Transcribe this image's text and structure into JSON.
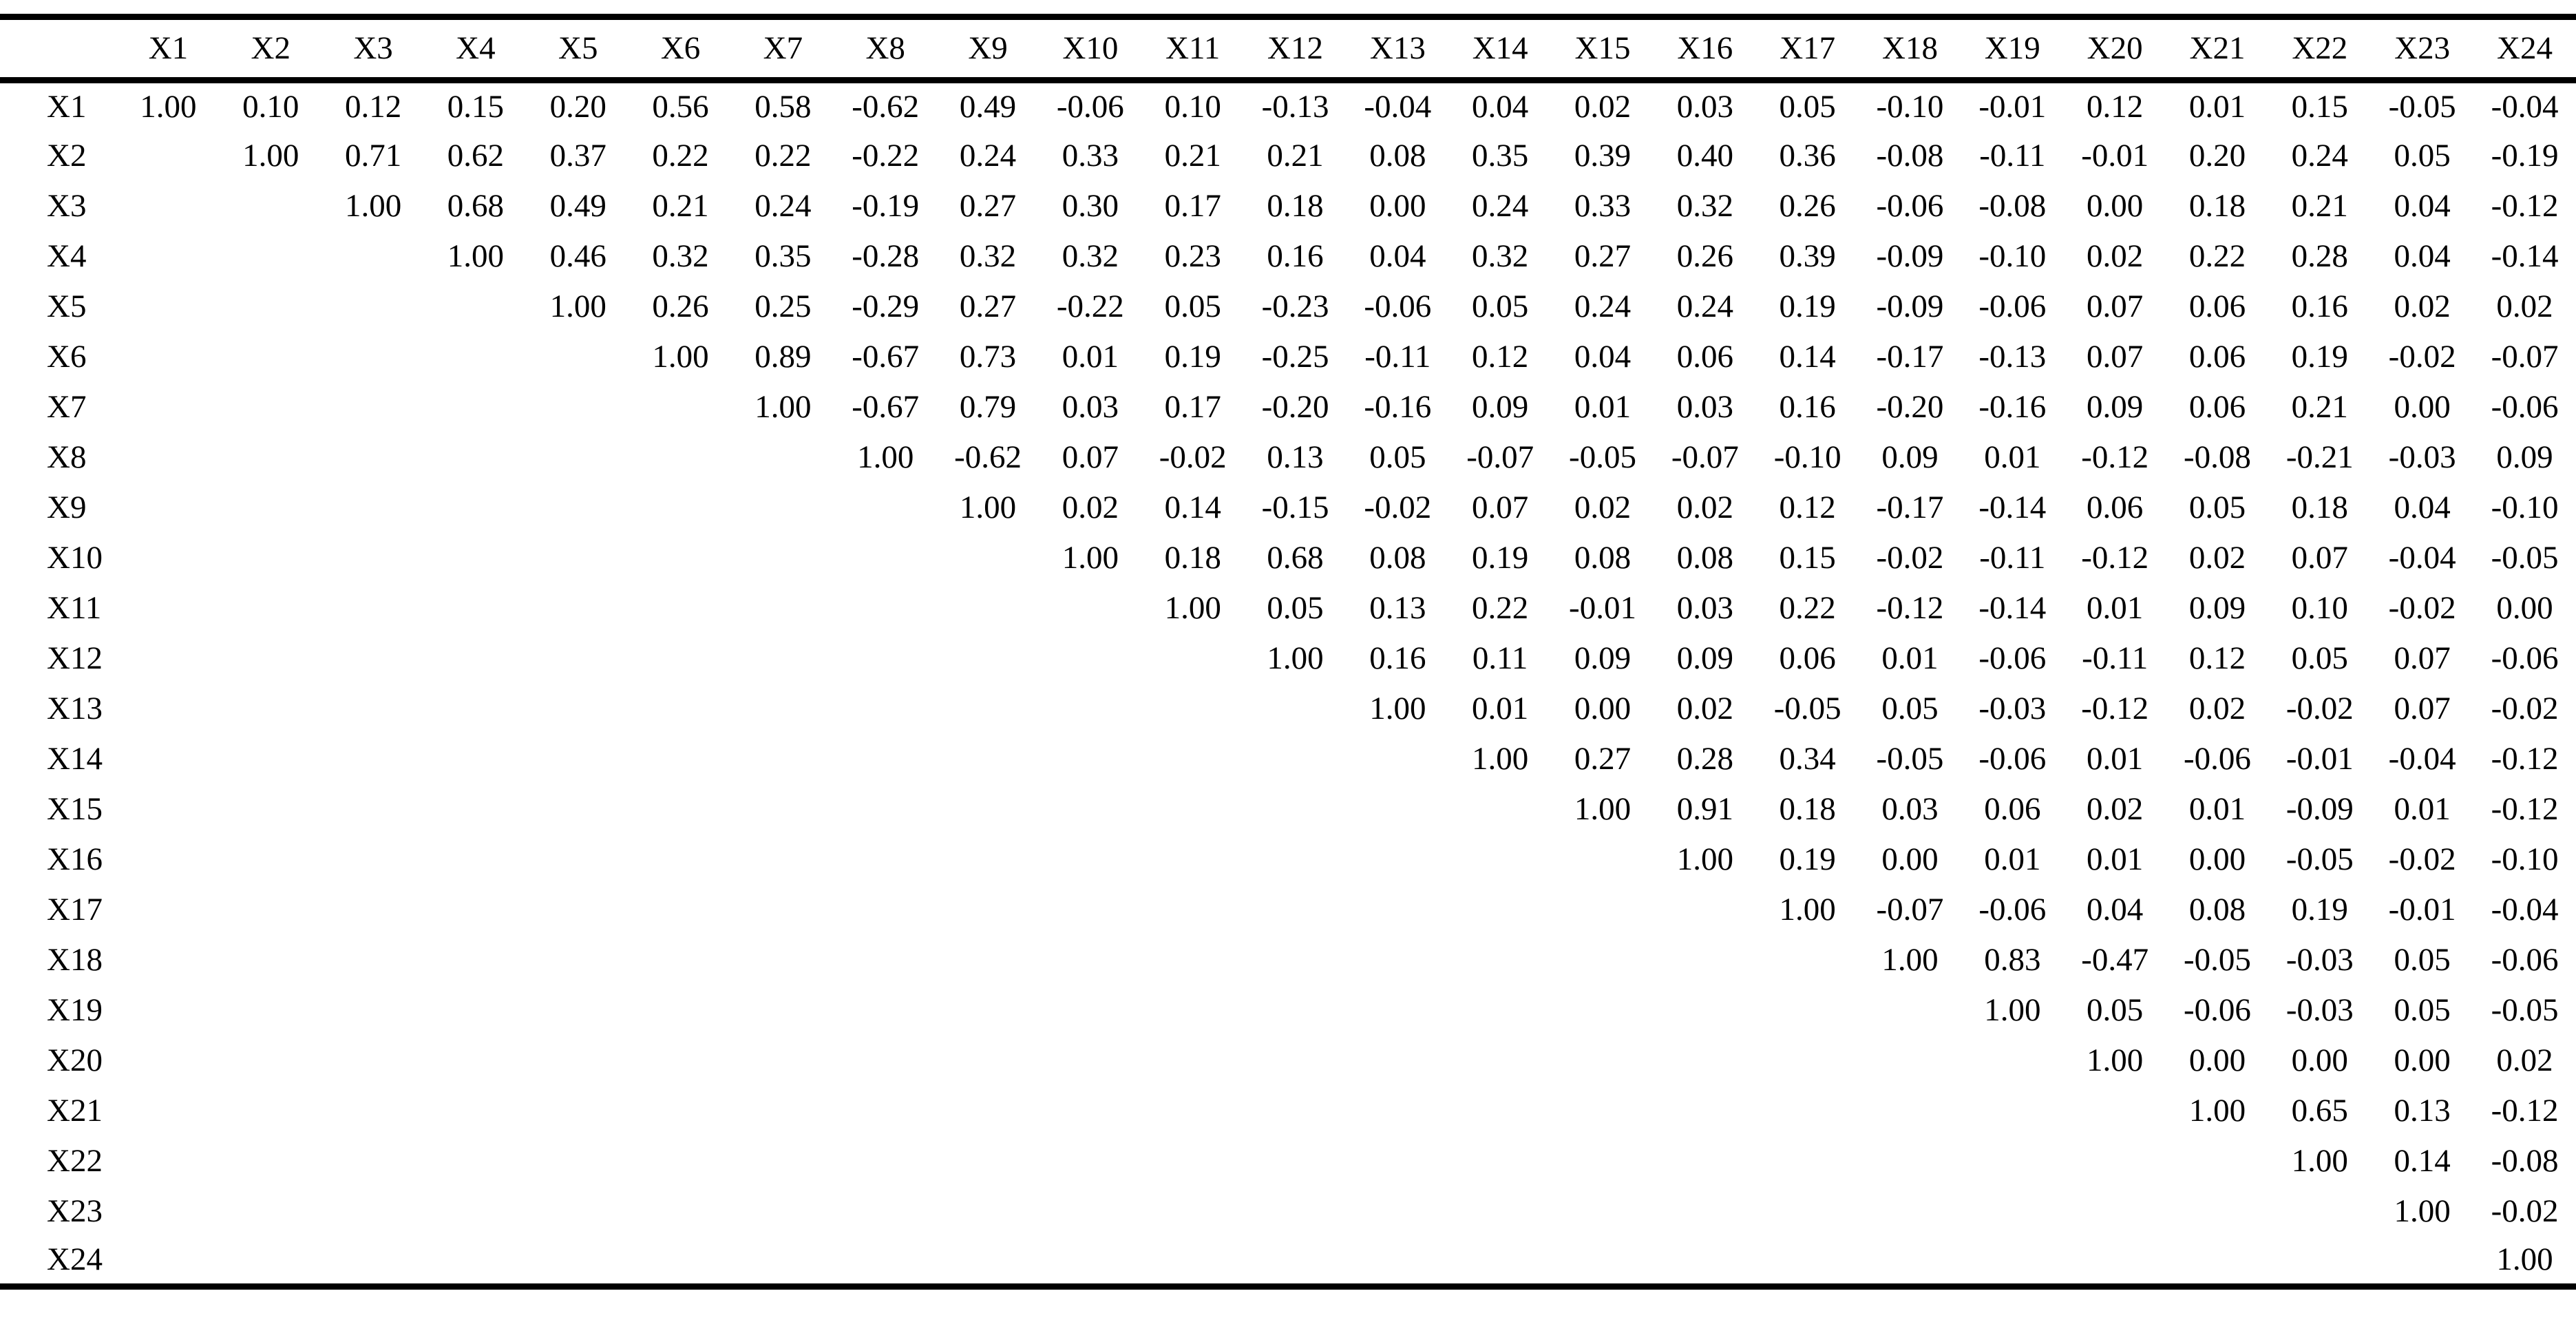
{
  "table": {
    "corner_label": "",
    "columns": [
      "X1",
      "X2",
      "X3",
      "X4",
      "X5",
      "X6",
      "X7",
      "X8",
      "X9",
      "X10",
      "X11",
      "X12",
      "X13",
      "X14",
      "X15",
      "X16",
      "X17",
      "X18",
      "X19",
      "X20",
      "X21",
      "X22",
      "X23",
      "X24"
    ],
    "rows": [
      {
        "label": "X1",
        "values": [
          "1.00",
          "0.10",
          "0.12",
          "0.15",
          "0.20",
          "0.56",
          "0.58",
          "-0.62",
          "0.49",
          "-0.06",
          "0.10",
          "-0.13",
          "-0.04",
          "0.04",
          "0.02",
          "0.03",
          "0.05",
          "-0.10",
          "-0.01",
          "0.12",
          "0.01",
          "0.15",
          "-0.05",
          "-0.04"
        ]
      },
      {
        "label": "X2",
        "values": [
          "",
          "1.00",
          "0.71",
          "0.62",
          "0.37",
          "0.22",
          "0.22",
          "-0.22",
          "0.24",
          "0.33",
          "0.21",
          "0.21",
          "0.08",
          "0.35",
          "0.39",
          "0.40",
          "0.36",
          "-0.08",
          "-0.11",
          "-0.01",
          "0.20",
          "0.24",
          "0.05",
          "-0.19"
        ]
      },
      {
        "label": "X3",
        "values": [
          "",
          "",
          "1.00",
          "0.68",
          "0.49",
          "0.21",
          "0.24",
          "-0.19",
          "0.27",
          "0.30",
          "0.17",
          "0.18",
          "0.00",
          "0.24",
          "0.33",
          "0.32",
          "0.26",
          "-0.06",
          "-0.08",
          "0.00",
          "0.18",
          "0.21",
          "0.04",
          "-0.12"
        ]
      },
      {
        "label": "X4",
        "values": [
          "",
          "",
          "",
          "1.00",
          "0.46",
          "0.32",
          "0.35",
          "-0.28",
          "0.32",
          "0.32",
          "0.23",
          "0.16",
          "0.04",
          "0.32",
          "0.27",
          "0.26",
          "0.39",
          "-0.09",
          "-0.10",
          "0.02",
          "0.22",
          "0.28",
          "0.04",
          "-0.14"
        ]
      },
      {
        "label": "X5",
        "values": [
          "",
          "",
          "",
          "",
          "1.00",
          "0.26",
          "0.25",
          "-0.29",
          "0.27",
          "-0.22",
          "0.05",
          "-0.23",
          "-0.06",
          "0.05",
          "0.24",
          "0.24",
          "0.19",
          "-0.09",
          "-0.06",
          "0.07",
          "0.06",
          "0.16",
          "0.02",
          "0.02"
        ]
      },
      {
        "label": "X6",
        "values": [
          "",
          "",
          "",
          "",
          "",
          "1.00",
          "0.89",
          "-0.67",
          "0.73",
          "0.01",
          "0.19",
          "-0.25",
          "-0.11",
          "0.12",
          "0.04",
          "0.06",
          "0.14",
          "-0.17",
          "-0.13",
          "0.07",
          "0.06",
          "0.19",
          "-0.02",
          "-0.07"
        ]
      },
      {
        "label": "X7",
        "values": [
          "",
          "",
          "",
          "",
          "",
          "",
          "1.00",
          "-0.67",
          "0.79",
          "0.03",
          "0.17",
          "-0.20",
          "-0.16",
          "0.09",
          "0.01",
          "0.03",
          "0.16",
          "-0.20",
          "-0.16",
          "0.09",
          "0.06",
          "0.21",
          "0.00",
          "-0.06"
        ]
      },
      {
        "label": "X8",
        "values": [
          "",
          "",
          "",
          "",
          "",
          "",
          "",
          "1.00",
          "-0.62",
          "0.07",
          "-0.02",
          "0.13",
          "0.05",
          "-0.07",
          "-0.05",
          "-0.07",
          "-0.10",
          "0.09",
          "0.01",
          "-0.12",
          "-0.08",
          "-0.21",
          "-0.03",
          "0.09"
        ]
      },
      {
        "label": "X9",
        "values": [
          "",
          "",
          "",
          "",
          "",
          "",
          "",
          "",
          "1.00",
          "0.02",
          "0.14",
          "-0.15",
          "-0.02",
          "0.07",
          "0.02",
          "0.02",
          "0.12",
          "-0.17",
          "-0.14",
          "0.06",
          "0.05",
          "0.18",
          "0.04",
          "-0.10"
        ]
      },
      {
        "label": "X10",
        "values": [
          "",
          "",
          "",
          "",
          "",
          "",
          "",
          "",
          "",
          "1.00",
          "0.18",
          "0.68",
          "0.08",
          "0.19",
          "0.08",
          "0.08",
          "0.15",
          "-0.02",
          "-0.11",
          "-0.12",
          "0.02",
          "0.07",
          "-0.04",
          "-0.05"
        ]
      },
      {
        "label": "X11",
        "values": [
          "",
          "",
          "",
          "",
          "",
          "",
          "",
          "",
          "",
          "",
          "1.00",
          "0.05",
          "0.13",
          "0.22",
          "-0.01",
          "0.03",
          "0.22",
          "-0.12",
          "-0.14",
          "0.01",
          "0.09",
          "0.10",
          "-0.02",
          "0.00"
        ]
      },
      {
        "label": "X12",
        "values": [
          "",
          "",
          "",
          "",
          "",
          "",
          "",
          "",
          "",
          "",
          "",
          "1.00",
          "0.16",
          "0.11",
          "0.09",
          "0.09",
          "0.06",
          "0.01",
          "-0.06",
          "-0.11",
          "0.12",
          "0.05",
          "0.07",
          "-0.06"
        ]
      },
      {
        "label": "X13",
        "values": [
          "",
          "",
          "",
          "",
          "",
          "",
          "",
          "",
          "",
          "",
          "",
          "",
          "1.00",
          "0.01",
          "0.00",
          "0.02",
          "-0.05",
          "0.05",
          "-0.03",
          "-0.12",
          "0.02",
          "-0.02",
          "0.07",
          "-0.02"
        ]
      },
      {
        "label": "X14",
        "values": [
          "",
          "",
          "",
          "",
          "",
          "",
          "",
          "",
          "",
          "",
          "",
          "",
          "",
          "1.00",
          "0.27",
          "0.28",
          "0.34",
          "-0.05",
          "-0.06",
          "0.01",
          "-0.06",
          "-0.01",
          "-0.04",
          "-0.12"
        ]
      },
      {
        "label": "X15",
        "values": [
          "",
          "",
          "",
          "",
          "",
          "",
          "",
          "",
          "",
          "",
          "",
          "",
          "",
          "",
          "1.00",
          "0.91",
          "0.18",
          "0.03",
          "0.06",
          "0.02",
          "0.01",
          "-0.09",
          "0.01",
          "-0.12"
        ]
      },
      {
        "label": "X16",
        "values": [
          "",
          "",
          "",
          "",
          "",
          "",
          "",
          "",
          "",
          "",
          "",
          "",
          "",
          "",
          "",
          "1.00",
          "0.19",
          "0.00",
          "0.01",
          "0.01",
          "0.00",
          "-0.05",
          "-0.02",
          "-0.10"
        ]
      },
      {
        "label": "X17",
        "values": [
          "",
          "",
          "",
          "",
          "",
          "",
          "",
          "",
          "",
          "",
          "",
          "",
          "",
          "",
          "",
          "",
          "1.00",
          "-0.07",
          "-0.06",
          "0.04",
          "0.08",
          "0.19",
          "-0.01",
          "-0.04"
        ]
      },
      {
        "label": "X18",
        "values": [
          "",
          "",
          "",
          "",
          "",
          "",
          "",
          "",
          "",
          "",
          "",
          "",
          "",
          "",
          "",
          "",
          "",
          "1.00",
          "0.83",
          "-0.47",
          "-0.05",
          "-0.03",
          "0.05",
          "-0.06"
        ]
      },
      {
        "label": "X19",
        "values": [
          "",
          "",
          "",
          "",
          "",
          "",
          "",
          "",
          "",
          "",
          "",
          "",
          "",
          "",
          "",
          "",
          "",
          "",
          "1.00",
          "0.05",
          "-0.06",
          "-0.03",
          "0.05",
          "-0.05"
        ]
      },
      {
        "label": "X20",
        "values": [
          "",
          "",
          "",
          "",
          "",
          "",
          "",
          "",
          "",
          "",
          "",
          "",
          "",
          "",
          "",
          "",
          "",
          "",
          "",
          "1.00",
          "0.00",
          "0.00",
          "0.00",
          "0.02"
        ]
      },
      {
        "label": "X21",
        "values": [
          "",
          "",
          "",
          "",
          "",
          "",
          "",
          "",
          "",
          "",
          "",
          "",
          "",
          "",
          "",
          "",
          "",
          "",
          "",
          "",
          "1.00",
          "0.65",
          "0.13",
          "-0.12"
        ]
      },
      {
        "label": "X22",
        "values": [
          "",
          "",
          "",
          "",
          "",
          "",
          "",
          "",
          "",
          "",
          "",
          "",
          "",
          "",
          "",
          "",
          "",
          "",
          "",
          "",
          "",
          "1.00",
          "0.14",
          "-0.08"
        ]
      },
      {
        "label": "X23",
        "values": [
          "",
          "",
          "",
          "",
          "",
          "",
          "",
          "",
          "",
          "",
          "",
          "",
          "",
          "",
          "",
          "",
          "",
          "",
          "",
          "",
          "",
          "",
          "1.00",
          "-0.02"
        ]
      },
      {
        "label": "X24",
        "values": [
          "",
          "",
          "",
          "",
          "",
          "",
          "",
          "",
          "",
          "",
          "",
          "",
          "",
          "",
          "",
          "",
          "",
          "",
          "",
          "",
          "",
          "",
          "",
          "1.00"
        ]
      }
    ]
  }
}
